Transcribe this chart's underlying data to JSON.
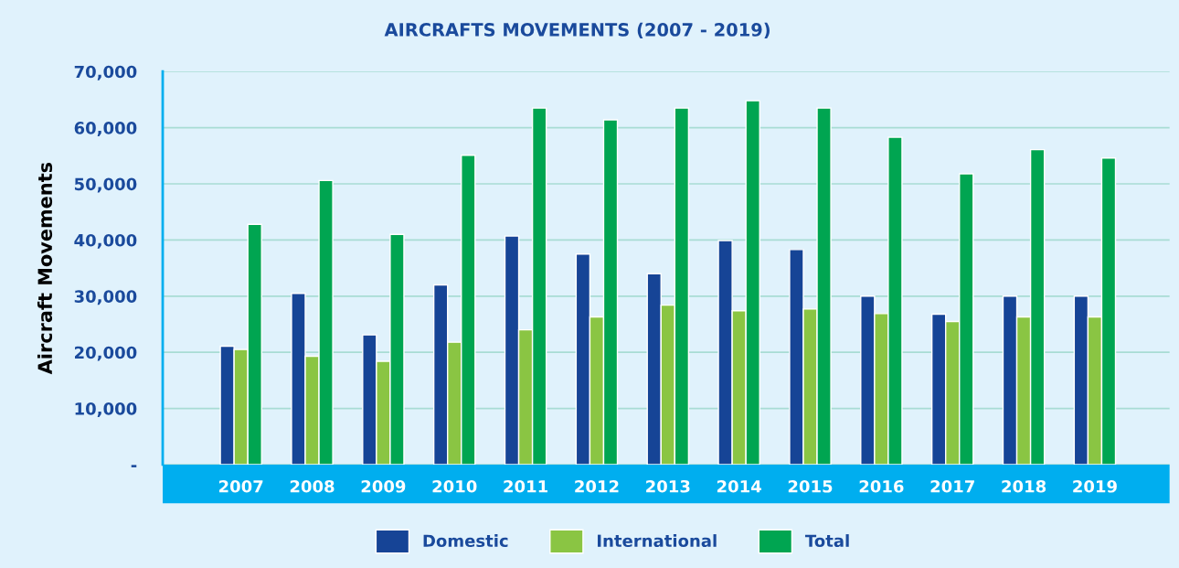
{
  "chart_data": {
    "type": "bar",
    "title": "AIRCRAFTS MOVEMENTS (2007 - 2019)",
    "ylabel": "Aircraft Movements",
    "categories": [
      "2007",
      "2008",
      "2009",
      "2010",
      "2011",
      "2012",
      "2013",
      "2014",
      "2015",
      "2016",
      "2017",
      "2018",
      "2019"
    ],
    "series": [
      {
        "name": "Domestic",
        "color": "#164496",
        "values": [
          21100,
          30500,
          23100,
          32000,
          40700,
          37500,
          34000,
          39900,
          38300,
          30000,
          26800,
          30000,
          30000
        ]
      },
      {
        "name": "International",
        "color": "#8ac543",
        "values": [
          20500,
          19300,
          18400,
          21800,
          24000,
          26300,
          28400,
          27400,
          27700,
          26900,
          25500,
          26300,
          26300
        ]
      },
      {
        "name": "Total",
        "color": "#00a551",
        "values": [
          42800,
          50600,
          41000,
          55100,
          63500,
          61400,
          63500,
          64800,
          63500,
          58300,
          51800,
          56100,
          54600
        ]
      }
    ],
    "ylim": [
      0,
      70000
    ],
    "yticks": [
      {
        "value": 0,
        "label": "-"
      },
      {
        "value": 10000,
        "label": "10,000"
      },
      {
        "value": 20000,
        "label": "20,000"
      },
      {
        "value": 30000,
        "label": "30,000"
      },
      {
        "value": 40000,
        "label": "40,000"
      },
      {
        "value": 50000,
        "label": "50,000"
      },
      {
        "value": 60000,
        "label": "60,000"
      },
      {
        "value": 70000,
        "label": "70,000"
      }
    ],
    "grid": "y",
    "legend": "bottom"
  }
}
